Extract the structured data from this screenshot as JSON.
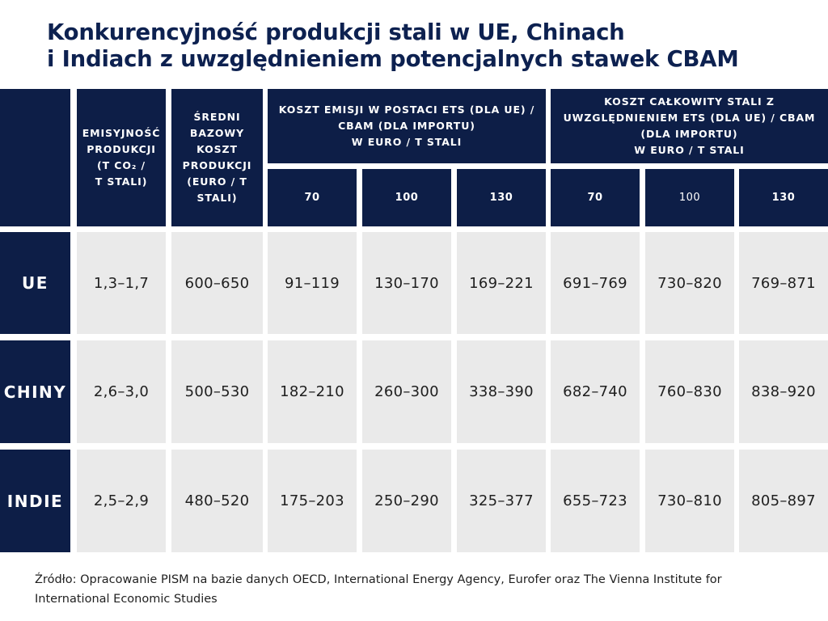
{
  "title": {
    "line1": "Konkurencyjność produkcji stali w UE, Chinach",
    "line2": "i Indiach z uwzględnieniem potencjalnych stawek CBAM"
  },
  "chart_data": {
    "type": "table",
    "title": "Konkurencyjność produkcji stali w UE, Chinach i Indiach z uwzględnieniem potencjalnych stawek CBAM",
    "headers": {
      "emissivity": "EMISYJNOŚĆ\nPRODUKCJI\n(T CO₂ /\nT STALI)",
      "base_cost": "ŚREDNI\nBAZOWY\nKOSZT\nPRODUKCJI\n(EURO / T\nSTALI)",
      "emission_cost_group": "KOSZT EMISJI W POSTACI ETS (DLA UE) /\nCBAM (DLA IMPORTU)\nW EURO / T STALI",
      "total_cost_group": "KOSZT CAŁKOWITY STALI Z\nUWZGLĘDNIENIEM ETS (DLA UE) / CBAM\n(DLA IMPORTU)\nW EURO / T STALI",
      "price_levels": [
        "70",
        "100",
        "130"
      ]
    },
    "rows": [
      {
        "label": "UE",
        "emissivity": "1,3–1,7",
        "base_cost": "600–650",
        "emission_cost": [
          "91–119",
          "130–170",
          "169–221"
        ],
        "total_cost": [
          "691–769",
          "730–820",
          "769–871"
        ]
      },
      {
        "label": "CHINY",
        "emissivity": "2,6–3,0",
        "base_cost": "500–530",
        "emission_cost": [
          "182–210",
          "260–300",
          "338–390"
        ],
        "total_cost": [
          "682–740",
          "760–830",
          "838–920"
        ]
      },
      {
        "label": "INDIE",
        "emissivity": "2,5–2,9",
        "base_cost": "480–520",
        "emission_cost": [
          "175–203",
          "250–290",
          "325–377"
        ],
        "total_cost": [
          "655–723",
          "730–810",
          "805–897"
        ]
      }
    ]
  },
  "source": "Źródło: Opracowanie PISM na bazie danych OECD, International Energy Agency, Eurofer oraz The Vienna Institute for International Economic Studies",
  "colors": {
    "header_bg": "#0d1e47",
    "cell_bg": "#eaeaea",
    "title": "#0d2150"
  }
}
